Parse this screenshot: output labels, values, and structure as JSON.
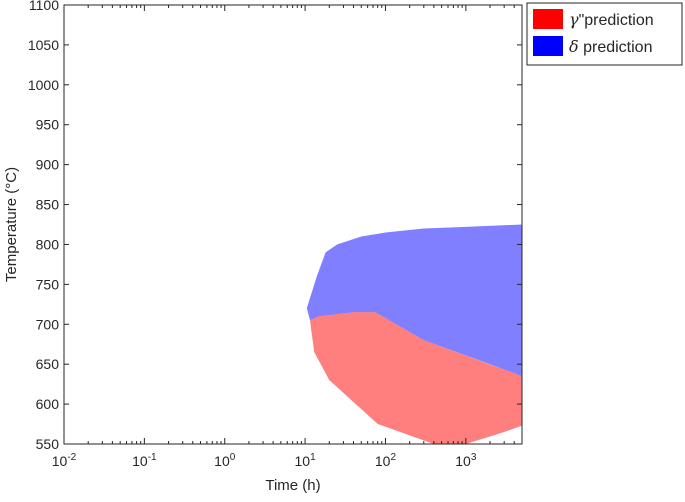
{
  "chart_data": {
    "type": "area",
    "title": "",
    "xlabel": "Time (h)",
    "ylabel": "Temperature (°C)",
    "xscale": "log",
    "xlim": [
      0.01,
      5000
    ],
    "ylim": [
      550,
      1100
    ],
    "grid": false,
    "legend_position": "outside-top-right",
    "x_ticks": [
      0.01,
      0.1,
      1,
      10,
      100,
      1000
    ],
    "x_tick_labels": [
      {
        "base": "10",
        "exp": "-2"
      },
      {
        "base": "10",
        "exp": "-1"
      },
      {
        "base": "10",
        "exp": "0"
      },
      {
        "base": "10",
        "exp": "1"
      },
      {
        "base": "10",
        "exp": "2"
      },
      {
        "base": "10",
        "exp": "3"
      }
    ],
    "y_ticks": [
      550,
      600,
      650,
      700,
      750,
      800,
      850,
      900,
      950,
      1000,
      1050,
      1100
    ],
    "y_tick_labels": [
      "550",
      "600",
      "650",
      "700",
      "750",
      "800",
      "850",
      "900",
      "950",
      "1000",
      "1050",
      "1100"
    ],
    "series": [
      {
        "name": "γ\"prediction",
        "legend_symbol": "γ",
        "legend_text": "\"prediction",
        "color": "#ff0000",
        "alpha": 0.5,
        "polygon": [
          [
            11.5,
            705
          ],
          [
            15,
            710
          ],
          [
            40,
            715
          ],
          [
            75,
            715
          ],
          [
            300,
            680
          ],
          [
            5000,
            635
          ],
          [
            5000,
            573
          ],
          [
            3000,
            565
          ],
          [
            1000,
            550
          ],
          [
            400,
            550
          ],
          [
            80,
            575
          ],
          [
            20,
            630
          ],
          [
            13,
            665
          ],
          [
            12,
            690
          ]
        ]
      },
      {
        "name": "δ prediction",
        "legend_symbol": "δ",
        "legend_text": " prediction",
        "color": "#0000ff",
        "alpha": 0.5,
        "polygon": [
          [
            10.5,
            720
          ],
          [
            14,
            760
          ],
          [
            18,
            790
          ],
          [
            25,
            800
          ],
          [
            50,
            810
          ],
          [
            100,
            815
          ],
          [
            300,
            820
          ],
          [
            1000,
            822
          ],
          [
            5000,
            825
          ],
          [
            5000,
            635
          ],
          [
            2000,
            650
          ],
          [
            300,
            680
          ],
          [
            75,
            715
          ],
          [
            40,
            715
          ],
          [
            15,
            710
          ],
          [
            11.5,
            705
          ]
        ]
      }
    ]
  }
}
